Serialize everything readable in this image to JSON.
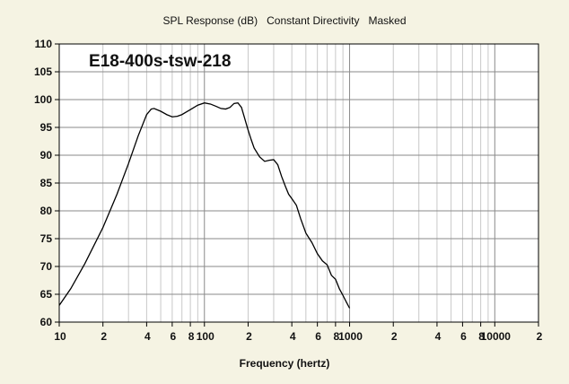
{
  "window": {
    "background": "#f5f3e3",
    "plot_background": "#ffffff"
  },
  "chart_data": {
    "type": "line",
    "title": "SPL Response (dB)   Constant Directivity   Masked",
    "xlabel": "Frequency (hertz)",
    "ylabel": "",
    "xscale": "log",
    "xlim": [
      10,
      20000
    ],
    "ylim": [
      60,
      110
    ],
    "grid": true,
    "x_tick_labels": [
      "10",
      "2",
      "4",
      "6",
      "8",
      "100",
      "2",
      "4",
      "6",
      "8",
      "1000",
      "2",
      "4",
      "6",
      "8",
      "10000",
      "2"
    ],
    "x_tick_values": [
      10,
      20,
      40,
      60,
      80,
      100,
      200,
      400,
      600,
      800,
      1000,
      2000,
      4000,
      6000,
      8000,
      10000,
      20000
    ],
    "y_tick_labels": [
      "60",
      "65",
      "70",
      "75",
      "80",
      "85",
      "90",
      "95",
      "100",
      "105",
      "110"
    ],
    "y_tick_values": [
      60,
      65,
      70,
      75,
      80,
      85,
      90,
      95,
      100,
      105,
      110
    ],
    "annotations": [
      {
        "text": "E18-400s-tsw-218",
        "x": 16,
        "y": 106
      }
    ],
    "series": [
      {
        "color": "#000000",
        "x": [
          10,
          12,
          15,
          20,
          25,
          30,
          35,
          40,
          43,
          45,
          50,
          55,
          60,
          65,
          70,
          80,
          90,
          100,
          110,
          120,
          130,
          140,
          150,
          160,
          170,
          180,
          190,
          200,
          210,
          220,
          240,
          260,
          280,
          300,
          320,
          340,
          360,
          380,
          400,
          430,
          460,
          500,
          550,
          600,
          650,
          700,
          750,
          800,
          850,
          900,
          950,
          1000
        ],
        "y": [
          63.0,
          66.0,
          70.5,
          77.0,
          83.0,
          88.5,
          93.5,
          97.3,
          98.3,
          98.4,
          97.9,
          97.3,
          96.9,
          97.0,
          97.3,
          98.2,
          99.0,
          99.4,
          99.2,
          98.8,
          98.4,
          98.3,
          98.6,
          99.3,
          99.4,
          98.6,
          96.5,
          94.5,
          92.8,
          91.3,
          89.7,
          88.9,
          89.1,
          89.2,
          88.3,
          86.2,
          84.5,
          83.0,
          82.2,
          81.0,
          78.6,
          76.0,
          74.3,
          72.3,
          71.0,
          70.3,
          68.4,
          67.7,
          66.0,
          64.8,
          63.6,
          62.5
        ]
      }
    ]
  }
}
